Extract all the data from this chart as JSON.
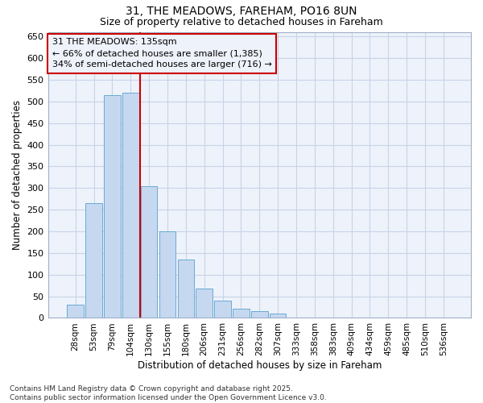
{
  "title1": "31, THE MEADOWS, FAREHAM, PO16 8UN",
  "title2": "Size of property relative to detached houses in Fareham",
  "xlabel": "Distribution of detached houses by size in Fareham",
  "ylabel": "Number of detached properties",
  "categories": [
    "28sqm",
    "53sqm",
    "79sqm",
    "104sqm",
    "130sqm",
    "155sqm",
    "180sqm",
    "206sqm",
    "231sqm",
    "256sqm",
    "282sqm",
    "307sqm",
    "333sqm",
    "358sqm",
    "383sqm",
    "409sqm",
    "434sqm",
    "459sqm",
    "485sqm",
    "510sqm",
    "536sqm"
  ],
  "values": [
    30,
    265,
    515,
    520,
    305,
    200,
    135,
    68,
    40,
    22,
    15,
    10,
    0,
    0,
    0,
    0,
    0,
    0,
    0,
    0,
    0
  ],
  "bar_color": "#c5d8f0",
  "bar_edge_color": "#6aaad4",
  "grid_color": "#c8d4e8",
  "vline_color": "#cc0000",
  "vline_x_index": 4,
  "annotation_text": "31 THE MEADOWS: 135sqm\n← 66% of detached houses are smaller (1,385)\n34% of semi-detached houses are larger (716) →",
  "annotation_box_edgecolor": "#cc0000",
  "ylim": [
    0,
    660
  ],
  "yticks": [
    0,
    50,
    100,
    150,
    200,
    250,
    300,
    350,
    400,
    450,
    500,
    550,
    600,
    650
  ],
  "footer_text": "Contains HM Land Registry data © Crown copyright and database right 2025.\nContains public sector information licensed under the Open Government Licence v3.0.",
  "bg_color": "#ffffff",
  "plot_bg_color": "#eef2fa",
  "title1_fontsize": 10,
  "title2_fontsize": 9,
  "axis_label_fontsize": 8.5,
  "tick_fontsize": 7.5,
  "annotation_fontsize": 8,
  "footer_fontsize": 6.5
}
